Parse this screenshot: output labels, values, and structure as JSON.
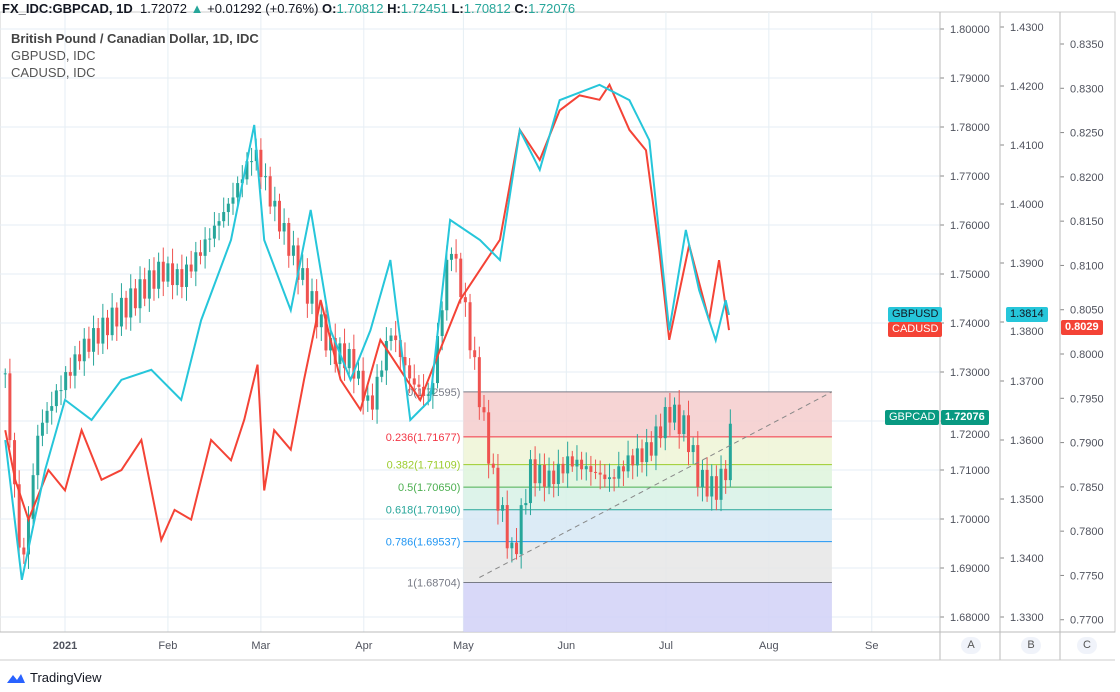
{
  "header": {
    "symbol": "FX_IDC:GBPCAD, 1D",
    "last": "1.72072",
    "change": "+0.01292 (+0.76%)",
    "o_label": "O:",
    "o": "1.70812",
    "h_label": "H:",
    "h": "1.72451",
    "l_label": "L:",
    "l": "1.70812",
    "c_label": "C:",
    "c": "1.72076"
  },
  "legend": {
    "main": "British Pound / Canadian Dollar, 1D, IDC",
    "s1": "GBPUSD, IDC",
    "s2": "CADUSD, IDC"
  },
  "tags": {
    "gbpusd_name": "GBPUSD",
    "gbpusd_val": "1.3814",
    "cadusd_name": "CADUSD",
    "cadusd_val": "0.8029",
    "gbpcad_name": "GBPCAD",
    "gbpcad_val": "1.72076"
  },
  "scale_buttons": [
    "A",
    "B",
    "C"
  ],
  "footer": {
    "brand": "TradingView"
  },
  "colors": {
    "up": "#26a69a",
    "down": "#ef5350",
    "gbpusd": "#26c6da",
    "cadusd": "#f44336"
  },
  "chart_data": {
    "type": "candlestick+line",
    "x_unit": "days since 2021-01-01",
    "x_ticks": [
      {
        "day": 0,
        "label": "2021"
      },
      {
        "day": 31,
        "label": "Feb"
      },
      {
        "day": 59,
        "label": "Mar"
      },
      {
        "day": 90,
        "label": "Apr"
      },
      {
        "day": 120,
        "label": "May"
      },
      {
        "day": 151,
        "label": "Jun"
      },
      {
        "day": 181,
        "label": "Jul"
      },
      {
        "day": 212,
        "label": "Aug"
      },
      {
        "day": 243,
        "label": "Se"
      }
    ],
    "axis_A": {
      "ticks": [
        "1.80000",
        "1.79000",
        "1.78000",
        "1.77000",
        "1.76000",
        "1.75000",
        "1.74000",
        "1.73000",
        "1.72000",
        "1.71000",
        "1.70000",
        "1.69000",
        "1.68000"
      ],
      "range": [
        1.6787,
        1.8035
      ]
    },
    "axis_B": {
      "ticks": [
        "1.4300",
        "1.4200",
        "1.4100",
        "1.4000",
        "1.3900",
        "1.3800",
        "1.3700",
        "1.3600",
        "1.3500",
        "1.3400",
        "1.3300"
      ],
      "range": [
        1.3273,
        1.4327
      ]
    },
    "axis_C": {
      "ticks": [
        "0.8350",
        "0.8300",
        "0.8250",
        "0.8200",
        "0.8150",
        "0.8100",
        "0.8050",
        "0.8000",
        "0.7950",
        "0.7900",
        "0.7850",
        "0.7800",
        "0.7750",
        "0.7700"
      ],
      "range": [
        0.769,
        0.8376
      ]
    },
    "gbpcad_closes": [
      [
        -18,
        1.7284
      ],
      [
        -13,
        1.6886
      ],
      [
        -8,
        1.7182
      ],
      [
        -2,
        1.7263
      ],
      [
        5,
        1.7345
      ],
      [
        11,
        1.7386
      ],
      [
        20,
        1.7447
      ],
      [
        29,
        1.7508
      ],
      [
        35,
        1.7488
      ],
      [
        41,
        1.7549
      ],
      [
        50,
        1.7651
      ],
      [
        57,
        1.7753
      ],
      [
        62,
        1.7651
      ],
      [
        68,
        1.7549
      ],
      [
        74,
        1.7447
      ],
      [
        80,
        1.7345
      ],
      [
        86,
        1.7324
      ],
      [
        92,
        1.7222
      ],
      [
        98,
        1.7386
      ],
      [
        104,
        1.7284
      ],
      [
        110,
        1.7243
      ],
      [
        116,
        1.7569
      ],
      [
        120,
        1.7447
      ],
      [
        125,
        1.7243
      ],
      [
        129,
        1.708
      ],
      [
        135,
        1.6916
      ],
      [
        140,
        1.71
      ],
      [
        146,
        1.708
      ],
      [
        152,
        1.712
      ],
      [
        158,
        1.71
      ],
      [
        164,
        1.708
      ],
      [
        170,
        1.712
      ],
      [
        176,
        1.7141
      ],
      [
        182,
        1.7222
      ],
      [
        187,
        1.7182
      ],
      [
        191,
        1.708
      ],
      [
        196,
        1.7059
      ],
      [
        199,
        1.71
      ],
      [
        201,
        1.7207
      ]
    ],
    "gbpusd": [
      [
        -18,
        1.36
      ],
      [
        -13,
        1.3363
      ],
      [
        -6,
        1.3549
      ],
      [
        0,
        1.3668
      ],
      [
        8,
        1.3634
      ],
      [
        17,
        1.3702
      ],
      [
        26,
        1.3719
      ],
      [
        35,
        1.3668
      ],
      [
        41,
        1.3803
      ],
      [
        50,
        1.3939
      ],
      [
        57,
        1.4134
      ],
      [
        60,
        1.3939
      ],
      [
        68,
        1.382
      ],
      [
        74,
        1.399
      ],
      [
        80,
        1.3786
      ],
      [
        86,
        1.3702
      ],
      [
        92,
        1.3786
      ],
      [
        98,
        1.3905
      ],
      [
        104,
        1.3634
      ],
      [
        110,
        1.3668
      ],
      [
        116,
        1.3973
      ],
      [
        125,
        1.3939
      ],
      [
        131,
        1.3905
      ],
      [
        137,
        1.4125
      ],
      [
        143,
        1.4058
      ],
      [
        149,
        1.4176
      ],
      [
        161,
        1.4202
      ],
      [
        170,
        1.4176
      ],
      [
        176,
        1.4108
      ],
      [
        182,
        1.3786
      ],
      [
        187,
        1.3956
      ],
      [
        191,
        1.3854
      ],
      [
        196,
        1.3769
      ],
      [
        199,
        1.3837
      ],
      [
        200,
        1.3812
      ]
    ],
    "cadusd": [
      [
        -18,
        0.7914
      ],
      [
        -15,
        0.7858
      ],
      [
        -11,
        0.7813
      ],
      [
        -5,
        0.7869
      ],
      [
        0,
        0.7846
      ],
      [
        5,
        0.7914
      ],
      [
        11,
        0.7858
      ],
      [
        17,
        0.7869
      ],
      [
        23,
        0.7903
      ],
      [
        29,
        0.779
      ],
      [
        33,
        0.7824
      ],
      [
        38,
        0.7813
      ],
      [
        44,
        0.7903
      ],
      [
        50,
        0.788
      ],
      [
        54,
        0.7926
      ],
      [
        58,
        0.7988
      ],
      [
        60,
        0.7846
      ],
      [
        63,
        0.7914
      ],
      [
        68,
        0.7892
      ],
      [
        72,
        0.7971
      ],
      [
        77,
        0.8061
      ],
      [
        83,
        0.7971
      ],
      [
        89,
        0.7937
      ],
      [
        95,
        0.8016
      ],
      [
        101,
        0.7982
      ],
      [
        107,
        0.7948
      ],
      [
        113,
        0.8005
      ],
      [
        119,
        0.8061
      ],
      [
        125,
        0.8095
      ],
      [
        131,
        0.8129
      ],
      [
        137,
        0.8253
      ],
      [
        143,
        0.8219
      ],
      [
        149,
        0.8275
      ],
      [
        155,
        0.8292
      ],
      [
        161,
        0.8287
      ],
      [
        164,
        0.8304
      ],
      [
        170,
        0.8253
      ],
      [
        175,
        0.823
      ],
      [
        179,
        0.8117
      ],
      [
        182,
        0.8016
      ],
      [
        188,
        0.8123
      ],
      [
        194,
        0.8038
      ],
      [
        197,
        0.8106
      ],
      [
        200,
        0.8027
      ]
    ],
    "fibonacci": {
      "start_day": 120,
      "end_day": 231,
      "levels": [
        {
          "ratio": "0",
          "label": "0(1.72595)",
          "price": 1.72595,
          "color": "#787b86",
          "fill": "#f4cccc"
        },
        {
          "ratio": "0.236",
          "label": "0.236(1.71677)",
          "price": 1.71677,
          "color": "#f23645",
          "fill": "#eef5d6"
        },
        {
          "ratio": "0.382",
          "label": "0.382(1.71109)",
          "price": 1.71109,
          "color": "#9ccc2d",
          "fill": "#def5dc"
        },
        {
          "ratio": "0.5",
          "label": "0.5(1.70650)",
          "price": 1.7065,
          "color": "#4caf50",
          "fill": "#d7f1e6"
        },
        {
          "ratio": "0.618",
          "label": "0.618(1.70190)",
          "price": 1.7019,
          "color": "#26a69a",
          "fill": "#d6e8f4"
        },
        {
          "ratio": "0.786",
          "label": "0.786(1.69537)",
          "price": 1.69537,
          "color": "#2196f3",
          "fill": "#e6e6e6"
        },
        {
          "ratio": "1",
          "label": "1(1.68704)",
          "price": 1.68704,
          "color": "#787b86",
          "fill": "#d1d1f7"
        }
      ]
    }
  }
}
